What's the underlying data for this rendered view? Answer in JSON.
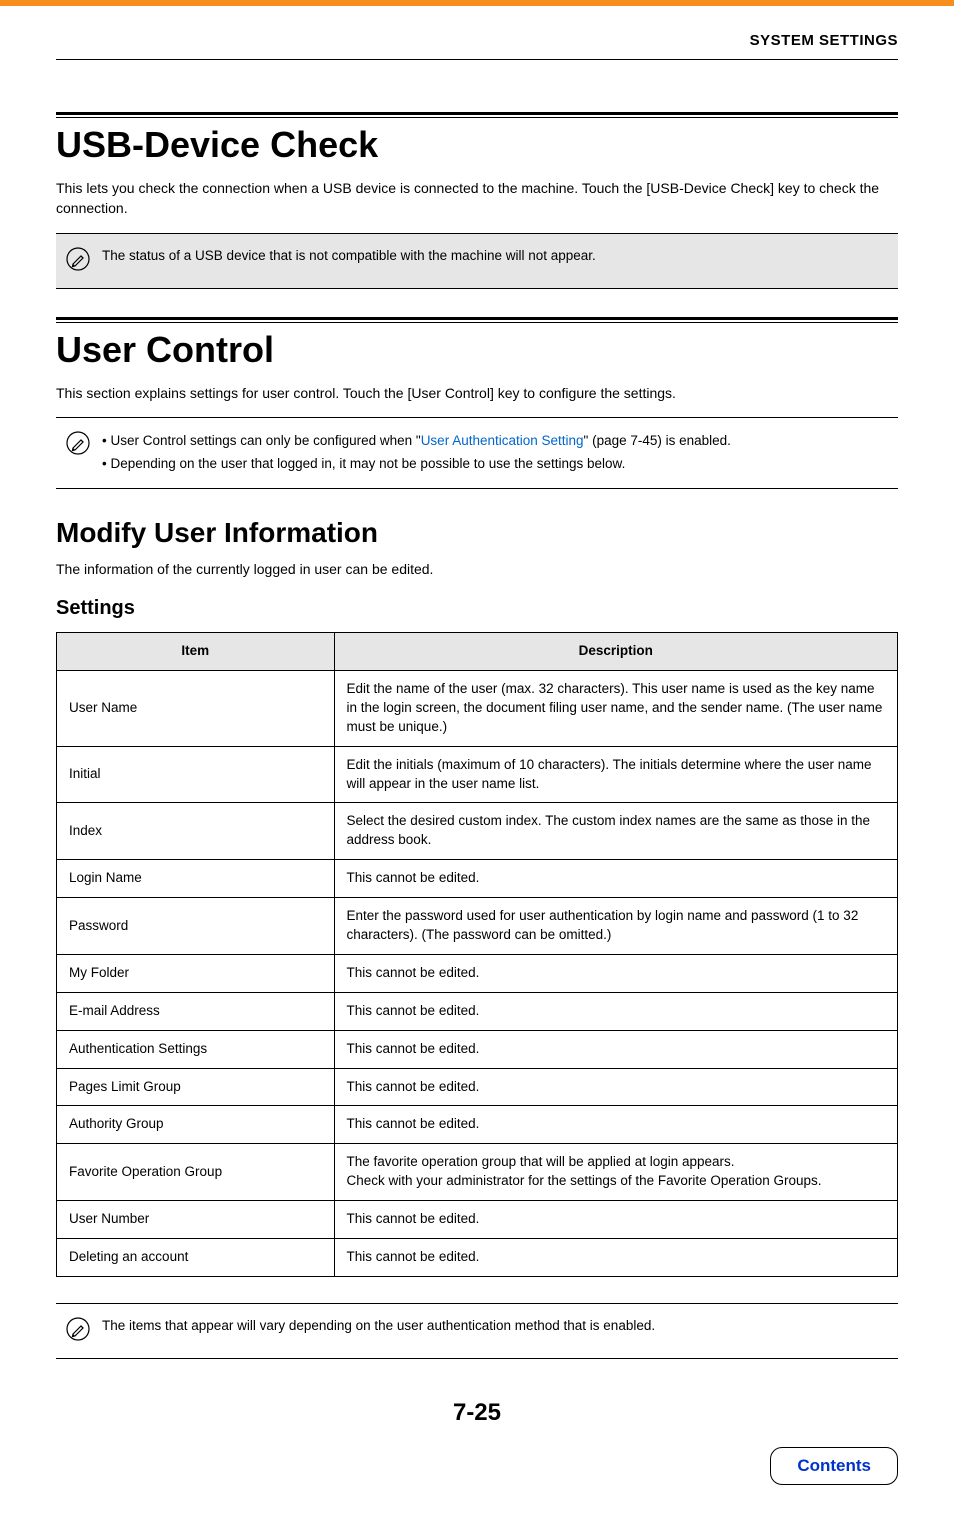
{
  "header": {
    "category": "SYSTEM SETTINGS"
  },
  "section1": {
    "title": "USB-Device Check",
    "body": "This lets you check the connection when a USB device is connected to the machine. Touch the [USB-Device Check] key to check the connection.",
    "note": "The status of a USB device that is not compatible with the machine will not appear."
  },
  "section2": {
    "title": "User Control",
    "body": "This section explains settings for user control. Touch the [User Control] key to configure the settings.",
    "note_bullet1_pre": "• User Control settings can only be configured when \"",
    "note_bullet1_link": "User Authentication Setting",
    "note_bullet1_post": "\" (page 7-45) is enabled.",
    "note_bullet2": "• Depending on the user that logged in, it may not be possible to use the settings below."
  },
  "modify": {
    "title": "Modify User Information",
    "body": "The information of the currently logged in user can be edited.",
    "settings_heading": "Settings"
  },
  "table": {
    "col_item": "Item",
    "col_desc": "Description",
    "rows": [
      {
        "item": "User Name",
        "desc": "Edit the name of the user (max. 32 characters). This user name is used as the key name in the login screen, the document filing user name, and the sender name. (The user name must be unique.)"
      },
      {
        "item": "Initial",
        "desc": "Edit the initials (maximum of 10 characters). The initials determine where the user name will appear in the user name list."
      },
      {
        "item": "Index",
        "desc": "Select the desired custom index. The custom index names are the same as those in the address book."
      },
      {
        "item": "Login Name",
        "desc": "This cannot be edited."
      },
      {
        "item": "Password",
        "desc": "Enter the password used for user authentication by login name and password (1 to 32 characters). (The password can be omitted.)"
      },
      {
        "item": "My Folder",
        "desc": "This cannot be edited."
      },
      {
        "item": "E-mail Address",
        "desc": "This cannot be edited."
      },
      {
        "item": "Authentication Settings",
        "desc": "This cannot be edited."
      },
      {
        "item": "Pages Limit Group",
        "desc": "This cannot be edited."
      },
      {
        "item": "Authority Group",
        "desc": "This cannot be edited."
      },
      {
        "item": "Favorite Operation Group",
        "desc": "The favorite operation group that will be applied at login appears.\nCheck with your administrator for the settings of the Favorite Operation Groups."
      },
      {
        "item": "User Number",
        "desc": "This cannot be edited."
      },
      {
        "item": "Deleting an account",
        "desc": "This cannot be edited."
      }
    ]
  },
  "foot_note": "The items that appear will vary depending on the user authentication method that is enabled.",
  "page_number": "7-25",
  "contents_button": "Contents",
  "colors": {
    "accent": "#f78f1e",
    "link": "#0066cc",
    "contents_text": "#0033cc",
    "note_bg": "#e6e6e6"
  }
}
